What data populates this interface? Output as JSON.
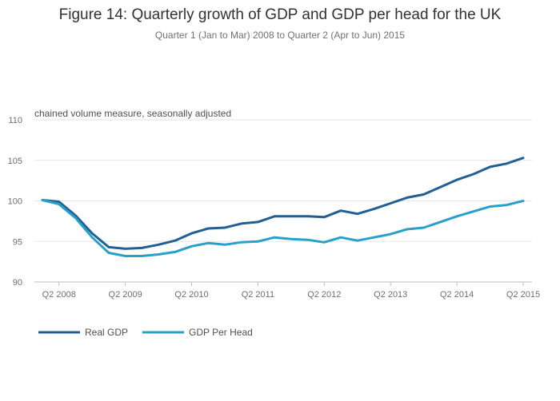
{
  "chart_data": {
    "type": "line",
    "title": "Figure 14: Quarterly growth of GDP and GDP per head for the UK",
    "subtitle": "Quarter 1 (Jan to Mar) 2008 to Quarter 2 (Apr to Jun) 2015",
    "ylabel": "chained volume measure, seasonally adjusted",
    "xlabel": "",
    "ylim": [
      90,
      110
    ],
    "yticks": [
      90,
      95,
      100,
      105,
      110
    ],
    "x": [
      "Q1 2008",
      "Q2 2008",
      "Q3 2008",
      "Q4 2008",
      "Q1 2009",
      "Q2 2009",
      "Q3 2009",
      "Q4 2009",
      "Q1 2010",
      "Q2 2010",
      "Q3 2010",
      "Q4 2010",
      "Q1 2011",
      "Q2 2011",
      "Q3 2011",
      "Q4 2011",
      "Q1 2012",
      "Q2 2012",
      "Q3 2012",
      "Q4 2012",
      "Q1 2013",
      "Q2 2013",
      "Q3 2013",
      "Q4 2013",
      "Q1 2014",
      "Q2 2014",
      "Q3 2014",
      "Q4 2014",
      "Q1 2015",
      "Q2 2015"
    ],
    "xticks": [
      "Q2 2008",
      "Q2 2009",
      "Q2 2010",
      "Q2 2011",
      "Q2 2012",
      "Q2 2013",
      "Q2 2014",
      "Q2 2015"
    ],
    "grid": true,
    "legend_position": "bottom-left",
    "series": [
      {
        "name": "Real GDP",
        "color": "#206095",
        "values": [
          100.1,
          99.9,
          98.2,
          96.0,
          94.3,
          94.1,
          94.2,
          94.6,
          95.1,
          96.0,
          96.6,
          96.7,
          97.2,
          97.4,
          98.1,
          98.1,
          98.1,
          98.0,
          98.8,
          98.4,
          99.0,
          99.7,
          100.4,
          100.8,
          101.7,
          102.6,
          103.3,
          104.2,
          104.6,
          105.3
        ]
      },
      {
        "name": "GDP Per Head",
        "color": "#27a0cc",
        "values": [
          100.1,
          99.6,
          97.9,
          95.5,
          93.6,
          93.2,
          93.2,
          93.4,
          93.7,
          94.4,
          94.8,
          94.6,
          94.9,
          95.0,
          95.5,
          95.3,
          95.2,
          94.9,
          95.5,
          95.1,
          95.5,
          95.9,
          96.5,
          96.7,
          97.4,
          98.1,
          98.7,
          99.3,
          99.5,
          100.0
        ]
      }
    ]
  }
}
